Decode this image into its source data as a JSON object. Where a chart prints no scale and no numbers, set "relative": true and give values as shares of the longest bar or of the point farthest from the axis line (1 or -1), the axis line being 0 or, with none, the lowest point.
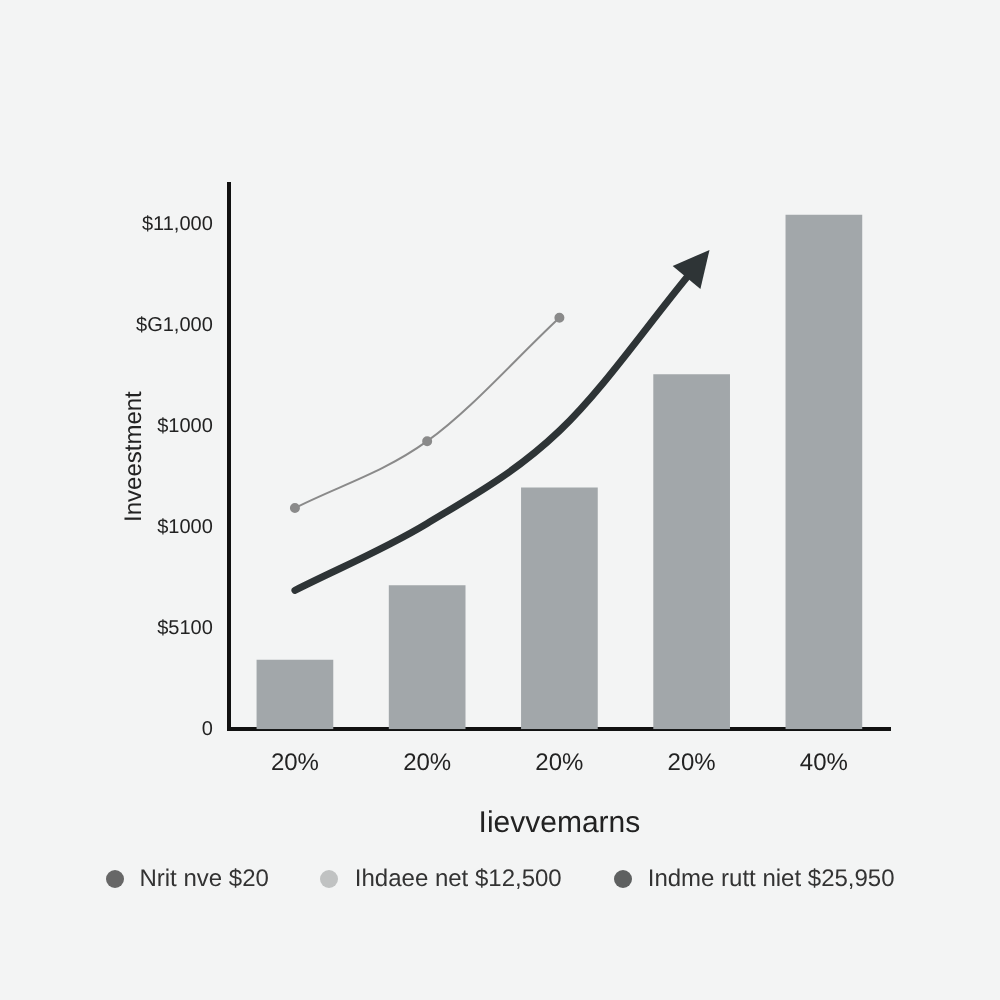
{
  "chart_data": {
    "type": "bar",
    "relative": true,
    "xlabel": "Iievvemarns",
    "ylabel": "Inveestment",
    "categories": [
      "20%",
      "20%",
      "20%",
      "20%",
      "40%"
    ],
    "series": [
      {
        "color": "#a2a7aa",
        "values": [
          0.135,
          0.28,
          0.47,
          0.69,
          1
        ]
      },
      {
        "type": "line",
        "color": "#8a8a8a",
        "values": [
          0.43,
          0.56,
          0.8,
          null,
          null
        ]
      },
      {
        "type": "line",
        "color": "#2e3436",
        "marker": "none",
        "values": [
          0.27,
          0.4,
          0.58,
          0.89,
          null
        ]
      }
    ],
    "marker": "circle",
    "line_style": "solid",
    "annotations": [
      "0",
      "$5100",
      "$1000",
      "$1000",
      "$G1,000",
      "$11,000",
      "Nrit nve $20",
      "Ihdaee net $12,500",
      "Indme rutt niet $25,950"
    ]
  }
}
